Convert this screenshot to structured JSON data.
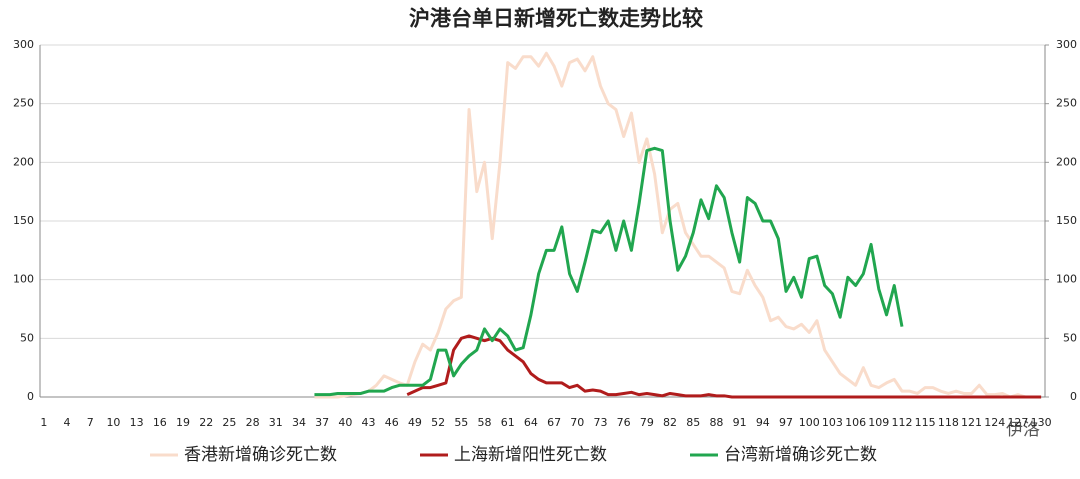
{
  "chart_data": {
    "type": "line",
    "title": "沪港台单日新增死亡数走势比较",
    "watermark": "伊洛",
    "categories": [
      "1",
      null,
      null,
      "4",
      null,
      null,
      "7",
      null,
      null,
      "10",
      null,
      null,
      "13",
      null,
      null,
      "16",
      null,
      null,
      "19",
      null,
      null,
      "22",
      null,
      null,
      "25",
      null,
      null,
      "28",
      null,
      null,
      "31",
      null,
      null,
      "34",
      null,
      null,
      "37",
      null,
      null,
      "40",
      null,
      null,
      "43",
      null,
      null,
      "46",
      null,
      null,
      "49",
      null,
      null,
      "52",
      null,
      null,
      "55",
      null,
      null,
      "58",
      null,
      null,
      "61",
      null,
      null,
      "64",
      null,
      null,
      "67",
      null,
      null,
      "70",
      null,
      null,
      "73",
      null,
      null,
      "76",
      null,
      null,
      "79",
      null,
      null,
      "82",
      null,
      null,
      "85",
      null,
      null,
      "88",
      null,
      null,
      "91",
      null,
      null,
      "94",
      null,
      null,
      "97",
      null,
      null,
      "100",
      null,
      null,
      "103",
      null,
      null,
      "106",
      null,
      null,
      "109",
      null,
      null,
      "112",
      null,
      null,
      "115",
      null,
      null,
      "118",
      null,
      null,
      "121",
      null,
      null,
      "124",
      null,
      null,
      "127",
      null,
      null,
      "130"
    ],
    "series": [
      {
        "name": "香港新增确诊死亡数",
        "color": "#f9dccb",
        "values": [
          null,
          null,
          null,
          null,
          null,
          null,
          null,
          null,
          null,
          null,
          null,
          null,
          null,
          null,
          null,
          null,
          null,
          null,
          null,
          null,
          null,
          null,
          null,
          null,
          null,
          null,
          null,
          null,
          null,
          null,
          null,
          null,
          null,
          null,
          null,
          0,
          0,
          0,
          0,
          1,
          2,
          3,
          5,
          10,
          18,
          15,
          12,
          10,
          30,
          45,
          40,
          55,
          75,
          82,
          85,
          245,
          175,
          200,
          135,
          200,
          285,
          280,
          290,
          290,
          282,
          293,
          282,
          265,
          285,
          288,
          278,
          290,
          265,
          250,
          245,
          222,
          242,
          200,
          220,
          190,
          140,
          160,
          165,
          140,
          130,
          120,
          120,
          115,
          110,
          90,
          88,
          108,
          95,
          85,
          65,
          68,
          60,
          58,
          62,
          55,
          65,
          40,
          30,
          20,
          15,
          10,
          25,
          10,
          8,
          12,
          15,
          5,
          5,
          3,
          8,
          8,
          5,
          3,
          5,
          3,
          3,
          10,
          2,
          2,
          3,
          0,
          2,
          0,
          0,
          0
        ]
      },
      {
        "name": "上海新增阳性死亡数",
        "color": "#b01c1c",
        "values": [
          null,
          null,
          null,
          null,
          null,
          null,
          null,
          null,
          null,
          null,
          null,
          null,
          null,
          null,
          null,
          null,
          null,
          null,
          null,
          null,
          null,
          null,
          null,
          null,
          null,
          null,
          null,
          null,
          null,
          null,
          null,
          null,
          null,
          null,
          null,
          null,
          null,
          null,
          null,
          null,
          null,
          null,
          null,
          null,
          null,
          null,
          null,
          2,
          5,
          8,
          8,
          10,
          12,
          40,
          50,
          52,
          50,
          48,
          50,
          48,
          40,
          35,
          30,
          20,
          15,
          12,
          12,
          12,
          8,
          10,
          5,
          6,
          5,
          2,
          2,
          3,
          4,
          2,
          3,
          2,
          1,
          3,
          2,
          1,
          1,
          1,
          2,
          1,
          1,
          0,
          0,
          0,
          0,
          0,
          0,
          0,
          0,
          0,
          0,
          0,
          0,
          0,
          0,
          0,
          0,
          0,
          0,
          0,
          0,
          0,
          0,
          0,
          0,
          0,
          0,
          0,
          0,
          0,
          0,
          0,
          0,
          0,
          0,
          0,
          0,
          0,
          0,
          0,
          0,
          0
        ]
      },
      {
        "name": "台湾新增确诊死亡数",
        "color": "#21a64f",
        "values": [
          null,
          null,
          null,
          null,
          null,
          null,
          null,
          null,
          null,
          null,
          null,
          null,
          null,
          null,
          null,
          null,
          null,
          null,
          null,
          null,
          null,
          null,
          null,
          null,
          null,
          null,
          null,
          null,
          null,
          null,
          null,
          null,
          null,
          null,
          null,
          2,
          2,
          2,
          3,
          3,
          3,
          3,
          5,
          5,
          5,
          8,
          10,
          10,
          10,
          10,
          15,
          40,
          40,
          18,
          28,
          35,
          40,
          58,
          48,
          58,
          52,
          40,
          42,
          70,
          105,
          125,
          125,
          145,
          105,
          90,
          115,
          142,
          140,
          150,
          125,
          150,
          125,
          165,
          210,
          212,
          210,
          150,
          108,
          120,
          140,
          168,
          152,
          180,
          170,
          140,
          115,
          170,
          165,
          150,
          150,
          135,
          90,
          102,
          85,
          118,
          120,
          95,
          88,
          68,
          102,
          95,
          105,
          130,
          92,
          70,
          95,
          60,
          null,
          null,
          null,
          null,
          null,
          null,
          null,
          null,
          null,
          null,
          null,
          null,
          null,
          null,
          null,
          null,
          null,
          null
        ]
      }
    ],
    "ylim": [
      0,
      300
    ],
    "yticks": [
      0,
      50,
      100,
      150,
      200,
      250,
      300
    ],
    "y2lim": [
      0,
      300
    ],
    "y2ticks": [
      0,
      50,
      100,
      150,
      200,
      250,
      300
    ],
    "grid": true,
    "legend": "bottom"
  }
}
